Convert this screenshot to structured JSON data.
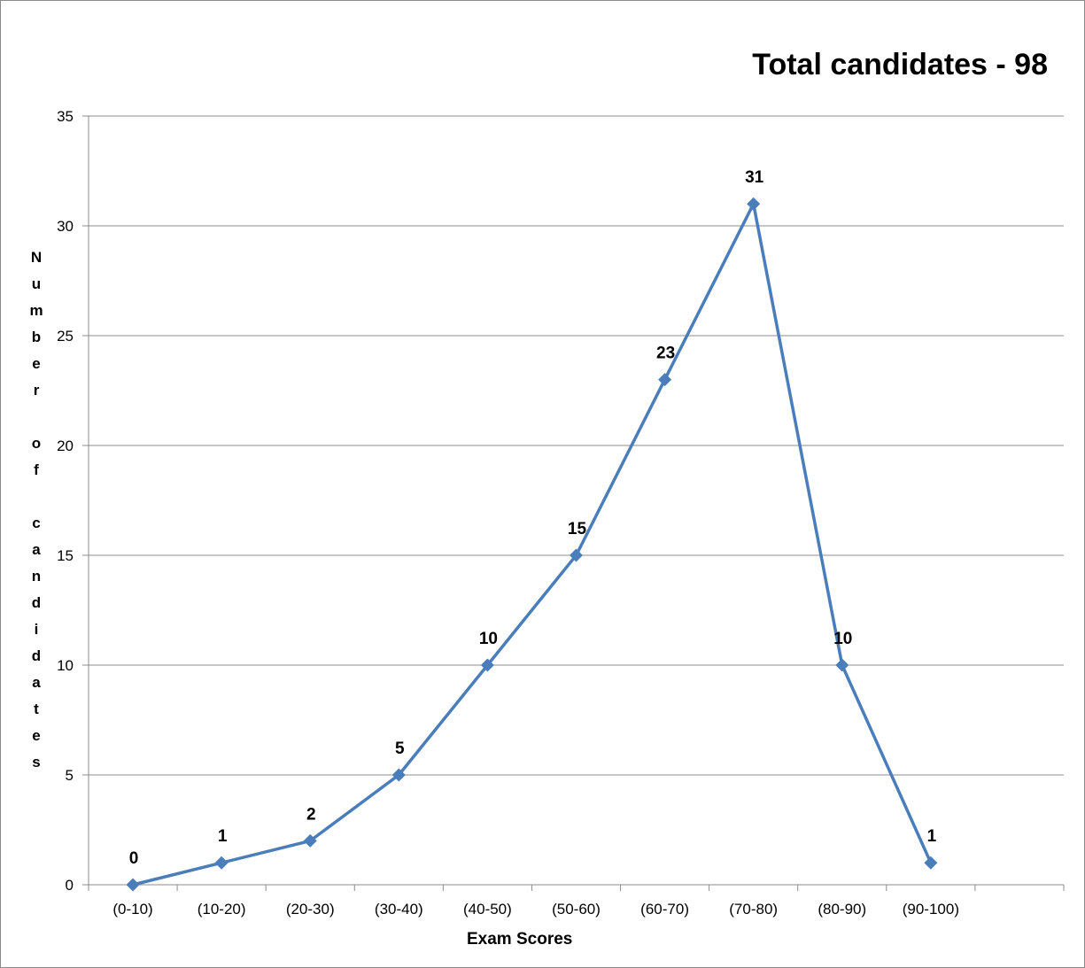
{
  "chart_data": {
    "type": "line",
    "title": "Total candidates - 98",
    "xlabel": "Exam Scores",
    "ylabel": "Number of candidates",
    "categories": [
      "(0-10)",
      "(10-20)",
      "(20-30)",
      "(30-40)",
      "(40-50)",
      "(50-60)",
      "(60-70)",
      "(70-80)",
      "(80-90)",
      "(90-100)"
    ],
    "series": [
      {
        "name": "Number of candidates",
        "values": [
          0,
          1,
          2,
          5,
          10,
          15,
          23,
          31,
          10,
          1
        ],
        "color": "#4A7EBB"
      }
    ],
    "ylim": [
      0,
      35
    ],
    "yticks": [
      0,
      5,
      10,
      15,
      20,
      25,
      30,
      35
    ],
    "grid": true,
    "marker": "diamond",
    "data_labels": true
  }
}
